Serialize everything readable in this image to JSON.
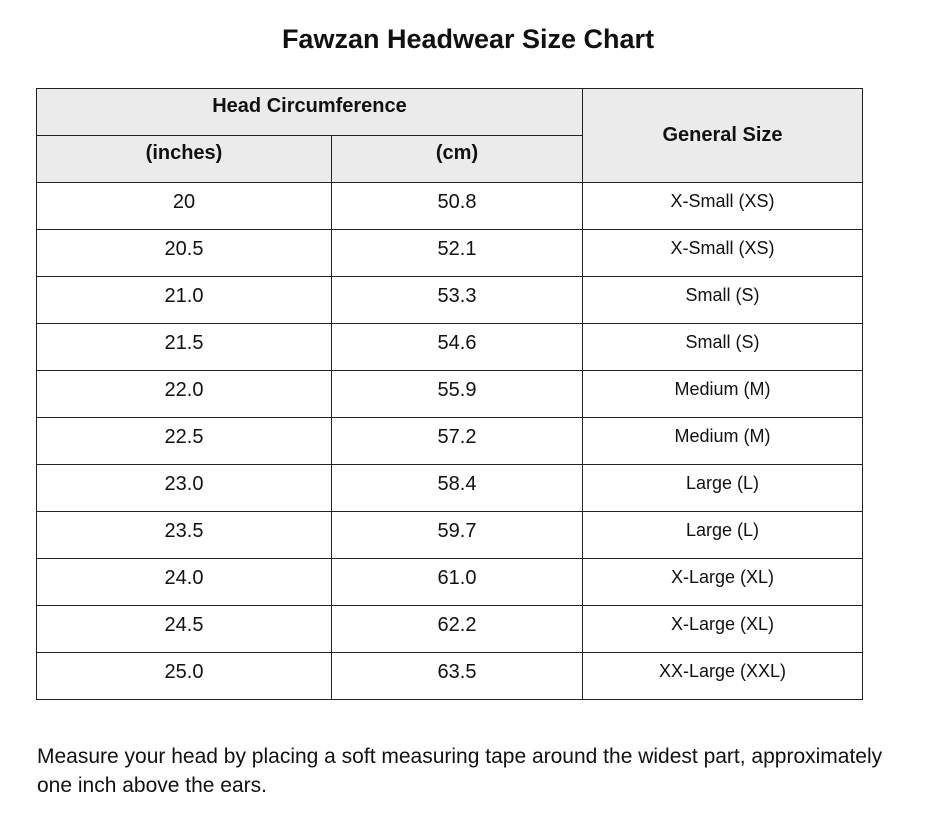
{
  "title": "Fawzan Headwear Size Chart",
  "table": {
    "group_header": "Head Circumference",
    "size_header": "General Size",
    "sub_headers": [
      "(inches)",
      "(cm)"
    ],
    "rows": [
      [
        "20",
        "50.8",
        "X-Small (XS)"
      ],
      [
        "20.5",
        "52.1",
        "X-Small (XS)"
      ],
      [
        "21.0",
        "53.3",
        "Small (S)"
      ],
      [
        "21.5",
        "54.6",
        "Small (S)"
      ],
      [
        "22.0",
        "55.9",
        "Medium (M)"
      ],
      [
        "22.5",
        "57.2",
        "Medium (M)"
      ],
      [
        "23.0",
        "58.4",
        "Large (L)"
      ],
      [
        "23.5",
        "59.7",
        "Large (L)"
      ],
      [
        "24.0",
        "61.0",
        "X-Large (XL)"
      ],
      [
        "24.5",
        "62.2",
        "X-Large (XL)"
      ],
      [
        "25.0",
        "63.5",
        "XX-Large (XXL)"
      ]
    ]
  },
  "note": "Measure your head by placing a soft measuring tape around the widest part, approximately one inch above the ears."
}
